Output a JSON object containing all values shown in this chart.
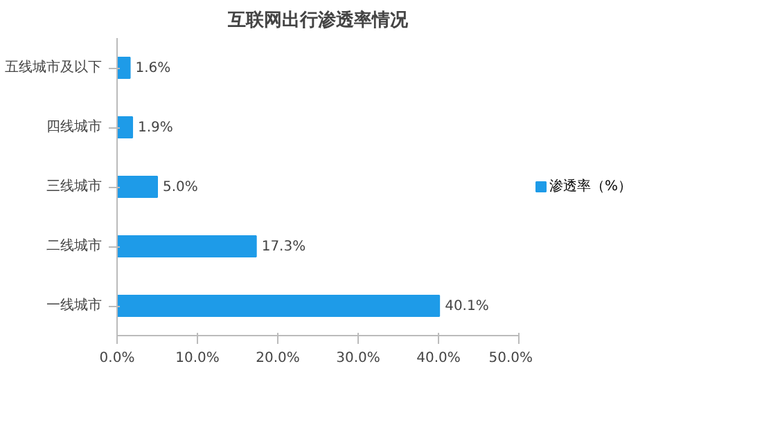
{
  "chart_data": {
    "type": "bar",
    "orientation": "horizontal",
    "title": "互联网出行渗透率情况",
    "categories": [
      "五线城市及以下",
      "四线城市",
      "三线城市",
      "二线城市",
      "一线城市"
    ],
    "series": [
      {
        "name": "渗透率（%）",
        "color": "#1e9be8",
        "values": [
          1.6,
          1.9,
          5.0,
          17.3,
          40.1
        ],
        "value_labels": [
          "1.6%",
          "1.9%",
          "5.0%",
          "17.3%",
          "40.1%"
        ]
      }
    ],
    "xlim": [
      0,
      50
    ],
    "xticks": [
      {
        "value": 0,
        "label": "0.0%"
      },
      {
        "value": 10,
        "label": "10.0%"
      },
      {
        "value": 20,
        "label": "20.0%"
      },
      {
        "value": 30,
        "label": "30.0%"
      },
      {
        "value": 40,
        "label": "40.0%"
      },
      {
        "value": 50,
        "label": "50.0%"
      }
    ],
    "grid": false,
    "legend": "right"
  }
}
